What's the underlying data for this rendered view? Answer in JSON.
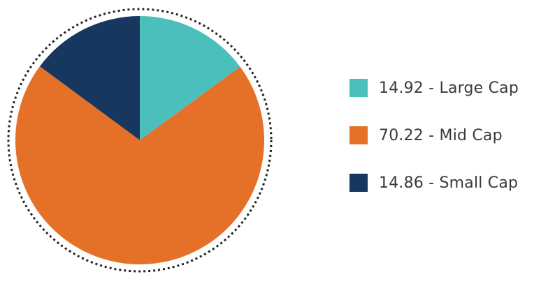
{
  "chart_data": {
    "type": "pie",
    "categories": [
      "Large Cap",
      "Mid Cap",
      "Small Cap"
    ],
    "values": [
      14.92,
      70.22,
      14.86
    ],
    "colors": [
      "#4bbfbc",
      "#e57128",
      "#17375e"
    ],
    "start_angle_deg": 0,
    "direction": "clockwise",
    "outline": "dotted",
    "legend_position": "right",
    "legend": [
      {
        "text": "14.92 - Large Cap",
        "color": "#4bbfbc"
      },
      {
        "text": "70.22 - Mid Cap",
        "color": "#e57128"
      },
      {
        "text": "14.86 - Small Cap",
        "color": "#17375e"
      }
    ]
  }
}
